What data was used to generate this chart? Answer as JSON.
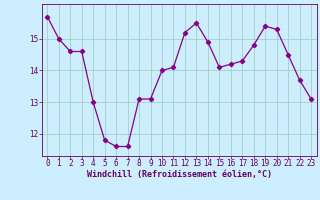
{
  "x": [
    0,
    1,
    2,
    3,
    4,
    5,
    6,
    7,
    8,
    9,
    10,
    11,
    12,
    13,
    14,
    15,
    16,
    17,
    18,
    19,
    20,
    21,
    22,
    23
  ],
  "y": [
    15.7,
    15.0,
    14.6,
    14.6,
    13.0,
    11.8,
    11.6,
    11.6,
    13.1,
    13.1,
    14.0,
    14.1,
    15.2,
    15.5,
    14.9,
    14.1,
    14.2,
    14.3,
    14.8,
    15.4,
    15.3,
    14.5,
    13.7,
    13.1
  ],
  "line_color": "#880088",
  "marker": "D",
  "markersize": 2.2,
  "linewidth": 0.9,
  "bg_color": "#cceeff",
  "grid_color": "#99ccbb",
  "xlabel": "Windchill (Refroidissement éolien,°C)",
  "xlabel_fontsize": 6.0,
  "tick_fontsize": 5.5,
  "ylim": [
    11.3,
    16.1
  ],
  "yticks": [
    12,
    13,
    14,
    15
  ],
  "xtick_labels": [
    "0",
    "1",
    "2",
    "3",
    "4",
    "5",
    "6",
    "7",
    "8",
    "9",
    "10",
    "11",
    "12",
    "13",
    "14",
    "15",
    "16",
    "17",
    "18",
    "19",
    "20",
    "21",
    "22",
    "23"
  ]
}
